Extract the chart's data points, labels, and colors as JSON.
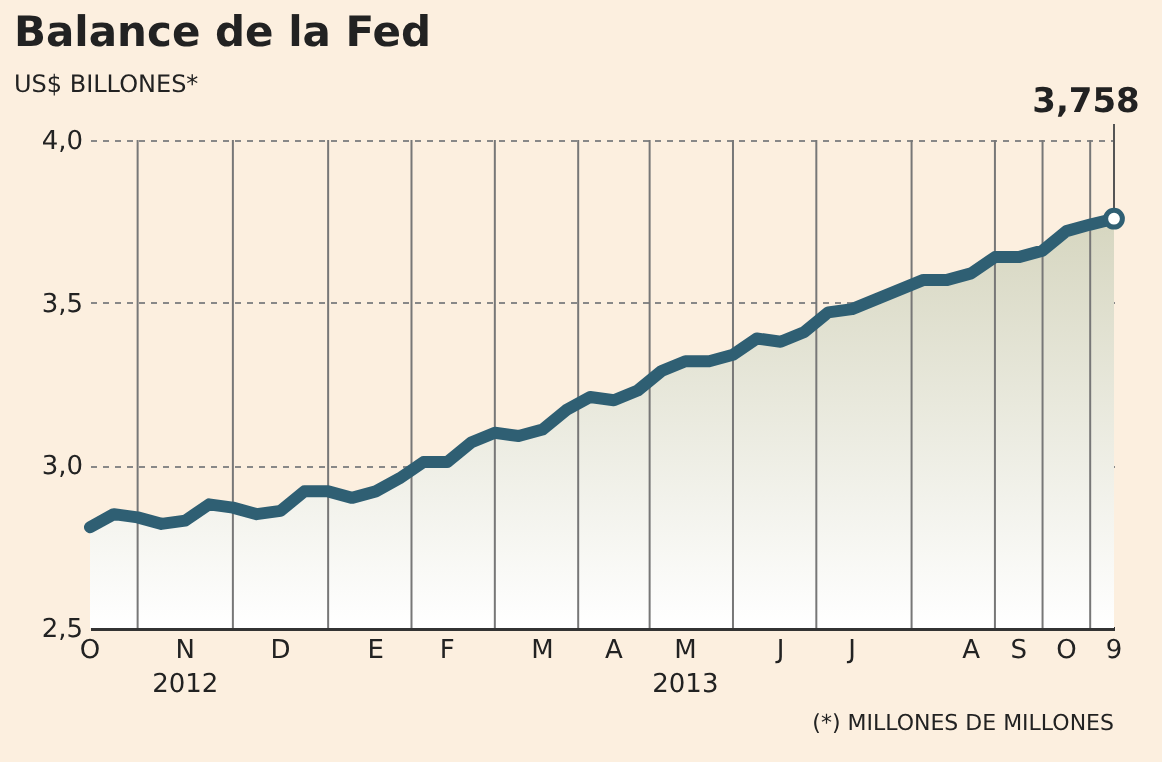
{
  "chart_data": {
    "type": "area",
    "title": "Balance de la Fed",
    "subtitle": "US$ BILLONES*",
    "categories": [
      "O",
      null,
      null,
      null,
      "N\n2012",
      null,
      null,
      null,
      "D",
      null,
      null,
      null,
      "E",
      null,
      null,
      "F",
      null,
      null,
      null,
      "M",
      null,
      null,
      "A",
      null,
      null,
      "M\n2013",
      null,
      null,
      null,
      "J",
      null,
      null,
      "J",
      null,
      null,
      null,
      null,
      "A",
      null,
      "S",
      null,
      "O",
      null,
      "9"
    ],
    "series": [
      {
        "color": "#2f5f73",
        "values": [
          2.81,
          2.85,
          2.84,
          2.82,
          2.83,
          2.88,
          2.87,
          2.85,
          2.86,
          2.92,
          2.92,
          2.9,
          2.92,
          2.96,
          3.01,
          3.01,
          3.07,
          3.1,
          3.09,
          3.11,
          3.17,
          3.21,
          3.2,
          3.23,
          3.29,
          3.32,
          3.32,
          3.34,
          3.39,
          3.38,
          3.41,
          3.47,
          3.48,
          3.51,
          3.54,
          3.57,
          3.57,
          3.59,
          3.64,
          3.64,
          3.66,
          3.72,
          3.74,
          3.758
        ]
      }
    ],
    "ylim": [
      2.5,
      4.0
    ],
    "yticks": [
      {
        "value": 2.5,
        "label": "2,5"
      },
      {
        "value": 3.0,
        "label": "3,0"
      },
      {
        "value": 3.5,
        "label": "3,5"
      },
      {
        "value": 4.0,
        "label": "4,0"
      }
    ],
    "grid": true,
    "legend": false,
    "marker": "none",
    "line_style": "solid",
    "annotations": [
      {
        "text": "3,758",
        "x": "9",
        "y": 3.758
      },
      "(*) MILLONES DE MILLONES"
    ]
  }
}
